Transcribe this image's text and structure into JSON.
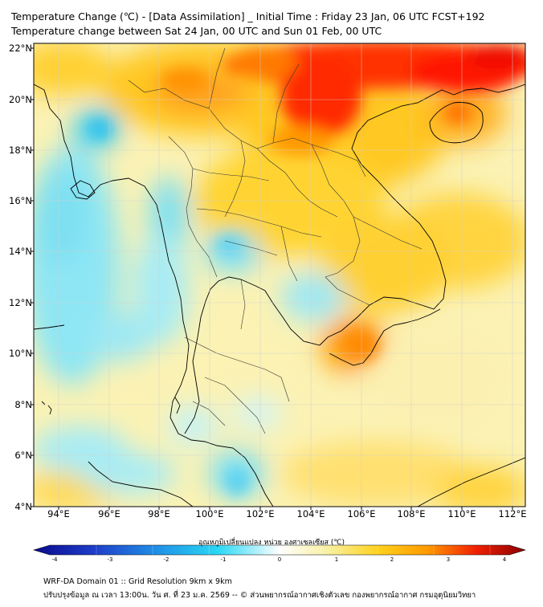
{
  "title_line1": "Temperature Change (℃) - [Data Assimilation] _ Initial Time : Friday 23 Jan, 06 UTC FCST+192",
  "title_line2": "Temperature change between Sat 24 Jan, 00 UTC and Sun 01 Feb, 00 UTC",
  "map": {
    "lon_range": [
      93,
      112.5
    ],
    "lat_range": [
      4,
      22.2
    ],
    "lat_ticks": [
      "22°N",
      "20°N",
      "18°N",
      "16°N",
      "14°N",
      "12°N",
      "10°N",
      "8°N",
      "6°N",
      "4°N"
    ],
    "lon_ticks": [
      "94°E",
      "96°E",
      "98°E",
      "100°E",
      "102°E",
      "104°E",
      "106°E",
      "108°E",
      "110°E",
      "112°E"
    ],
    "grid": true
  },
  "colorbar": {
    "title": "อุณหภูมิเปลี่ยนแปลง หน่วย องศาเซลเซียส (℃)",
    "range": [
      -4,
      4
    ],
    "ticks": [
      "-4",
      "-3",
      "-2",
      "-1",
      "0",
      "1",
      "2",
      "3",
      "4"
    ],
    "colors": [
      "#0a0a8c",
      "#1e3cc8",
      "#2090e6",
      "#2ad8f5",
      "#ffffff",
      "#f8f0a0",
      "#ffd21e",
      "#ff9a00",
      "#f02000",
      "#8b0000"
    ]
  },
  "footer": {
    "line1": "WRF-DA Domain 01 :: Grid Resolution 9km x 9km",
    "line2": "ปรับปรุงข้อมูล ณ เวลา 13:00น. วัน ศ. ที่ 23 ม.ค. 2569 -- © ส่วนพยากรณ์อากาศเชิงตัวเลข กองพยากรณ์อากาศ กรมอุตุนิยมวิทยา"
  }
}
